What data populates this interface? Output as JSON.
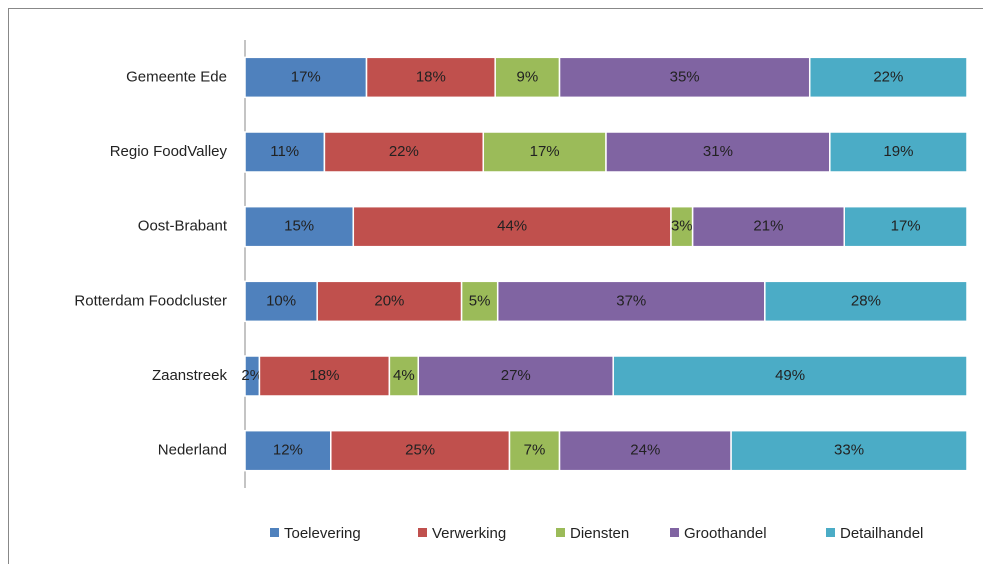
{
  "chart_data": {
    "type": "bar",
    "orientation": "horizontal",
    "stacked": "percent",
    "categories": [
      "Gemeente Ede",
      "Regio FoodValley",
      "Oost-Brabant",
      "Rotterdam Foodcluster",
      "Zaanstreek",
      "Nederland"
    ],
    "series": [
      {
        "name": "Toelevering",
        "color": "#4f81bd",
        "values": [
          17,
          11,
          15,
          10,
          2,
          12
        ],
        "value_labels": [
          "17%",
          "11%",
          "15%",
          "10%",
          "2%",
          "12%"
        ]
      },
      {
        "name": "Verwerking",
        "color": "#c0504d",
        "values": [
          18,
          22,
          44,
          20,
          18,
          25
        ],
        "value_labels": [
          "18%",
          "22%",
          "44%",
          "20%",
          "18%",
          "25%"
        ]
      },
      {
        "name": "Diensten",
        "color": "#9bbb59",
        "values": [
          9,
          17,
          3,
          5,
          4,
          7
        ],
        "value_labels": [
          "9%",
          "17%",
          "3%",
          "5%",
          "4%",
          "7%"
        ]
      },
      {
        "name": "Groothandel",
        "color": "#8064a2",
        "values": [
          35,
          31,
          21,
          37,
          27,
          24
        ],
        "value_labels": [
          "35%",
          "31%",
          "21%",
          "37%",
          "27%",
          "24%"
        ]
      },
      {
        "name": "Detailhandel",
        "color": "#4bacc6",
        "values": [
          22,
          19,
          17,
          28,
          49,
          33
        ],
        "value_labels": [
          "22%",
          "19%",
          "17%",
          "28%",
          "49%",
          "33%"
        ]
      }
    ],
    "legend": "bottom"
  }
}
